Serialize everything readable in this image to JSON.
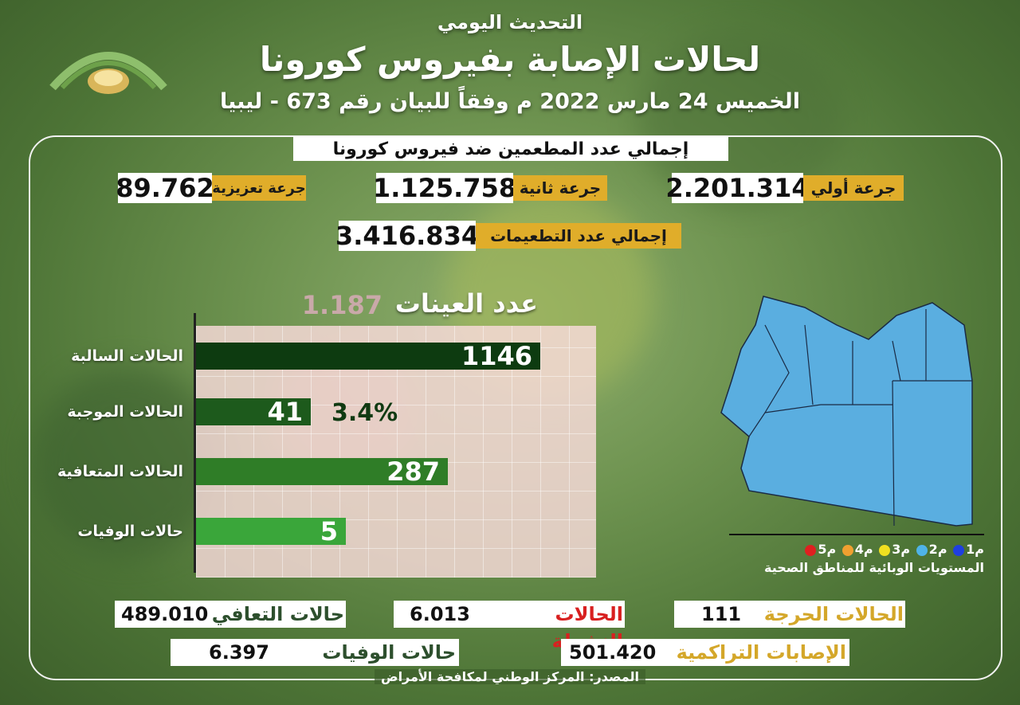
{
  "header": {
    "line1": "التحديث اليومي",
    "line2": "لحالات الإصابة بفيروس كورونا",
    "line3": "الخميس 24 مارس 2022 م وفقاً للبيان رقم 673 - ليبيا"
  },
  "vaccination": {
    "section_title": "إجمالي عدد المطعمين ضد فيروس كورونا",
    "first_dose_label": "جرعة أولي",
    "first_dose_value": "2.201.314",
    "second_dose_label": "جرعة ثانية",
    "second_dose_value": "1.125.758",
    "booster_label": "جرعة تعزيزية",
    "booster_value": "89.762",
    "total_label": "إجمالي عدد التطعيمات",
    "total_value": "3.416.834"
  },
  "samples": {
    "label": "عدد العينات",
    "value": "1.187"
  },
  "chart_data": {
    "type": "bar",
    "categories": [
      "الحالات السالبة",
      "الحالات الموجبة",
      "الحالات المتعافية",
      "حالات الوفيات"
    ],
    "values": [
      1146,
      41,
      287,
      5
    ],
    "value_labels": [
      "1146",
      "41",
      "287",
      "5"
    ],
    "annotation": "3.4%",
    "colors": [
      "#0d3b10",
      "#1d5a1c",
      "#2f7d27",
      "#3aa63a"
    ]
  },
  "map": {
    "legend": [
      {
        "label": "م1",
        "color": "#1f3fe0"
      },
      {
        "label": "م2",
        "color": "#4fb3e8"
      },
      {
        "label": "م3",
        "color": "#f0e020"
      },
      {
        "label": "م4",
        "color": "#f0a030"
      },
      {
        "label": "م5",
        "color": "#e02020"
      }
    ],
    "caption": "المستويات الوبائية للمناطق الصحية",
    "fill_color": "#5aaee0"
  },
  "stats": {
    "recovered_label": "حالات التعافي",
    "recovered_value": "489.010",
    "active_label": "الحالات النشطة",
    "active_value": "6.013",
    "critical_label": "الحالات الحرجة",
    "critical_value": "111",
    "deaths_label": "حالات الوفيات",
    "deaths_value": "6.397",
    "cumulative_label": "الإصابات التراكمية",
    "cumulative_value": "501.420"
  },
  "footer": {
    "source": "المصدر: المركز الوطني لمكافحة الأمراض"
  }
}
